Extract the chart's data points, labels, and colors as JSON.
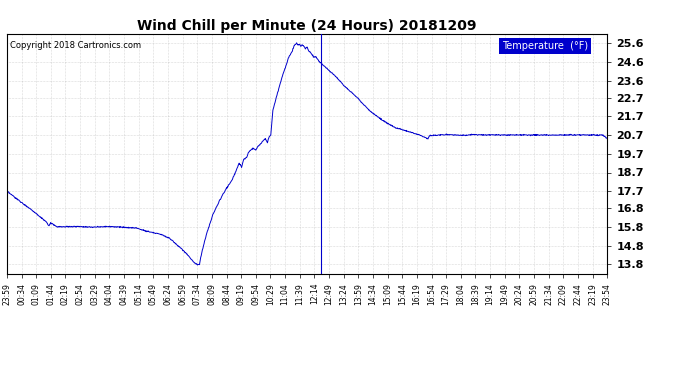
{
  "title": "Wind Chill per Minute (24 Hours) 20181209",
  "copyright": "Copyright 2018 Cartronics.com",
  "legend_label": "Temperature  (°F)",
  "line_color": "#0000cc",
  "background_color": "#ffffff",
  "plot_bg_color": "#ffffff",
  "grid_color": "#888888",
  "ylim": [
    13.3,
    26.1
  ],
  "yticks": [
    13.8,
    14.8,
    15.8,
    16.8,
    17.7,
    18.7,
    19.7,
    20.7,
    21.7,
    22.7,
    23.6,
    24.6,
    25.6
  ],
  "xtick_labels": [
    "23:59",
    "00:34",
    "01:09",
    "01:44",
    "02:19",
    "02:54",
    "03:29",
    "04:04",
    "04:39",
    "05:14",
    "05:49",
    "06:24",
    "06:59",
    "07:34",
    "08:09",
    "08:44",
    "09:19",
    "09:54",
    "10:29",
    "11:04",
    "11:39",
    "12:14",
    "12:49",
    "13:24",
    "13:59",
    "14:34",
    "15:09",
    "15:44",
    "16:19",
    "16:54",
    "17:29",
    "18:04",
    "18:39",
    "19:14",
    "19:49",
    "20:24",
    "20:59",
    "21:34",
    "22:09",
    "22:44",
    "23:19",
    "23:54"
  ],
  "legend_bg": "#0000cc",
  "legend_text_color": "#ffffff",
  "breakpoints": [
    [
      0,
      17.7
    ],
    [
      35,
      17.1
    ],
    [
      60,
      16.7
    ],
    [
      95,
      16.05
    ],
    [
      100,
      15.85
    ],
    [
      105,
      16.0
    ],
    [
      120,
      15.8
    ],
    [
      180,
      15.82
    ],
    [
      200,
      15.78
    ],
    [
      240,
      15.82
    ],
    [
      270,
      15.8
    ],
    [
      290,
      15.75
    ],
    [
      310,
      15.75
    ],
    [
      330,
      15.6
    ],
    [
      350,
      15.5
    ],
    [
      370,
      15.4
    ],
    [
      390,
      15.2
    ],
    [
      410,
      14.8
    ],
    [
      430,
      14.4
    ],
    [
      445,
      14.0
    ],
    [
      453,
      13.82
    ],
    [
      457,
      13.8
    ],
    [
      462,
      13.8
    ],
    [
      468,
      14.5
    ],
    [
      480,
      15.5
    ],
    [
      495,
      16.5
    ],
    [
      510,
      17.2
    ],
    [
      525,
      17.8
    ],
    [
      540,
      18.3
    ],
    [
      550,
      18.8
    ],
    [
      557,
      19.2
    ],
    [
      563,
      19.0
    ],
    [
      568,
      19.4
    ],
    [
      575,
      19.5
    ],
    [
      580,
      19.8
    ],
    [
      590,
      20.0
    ],
    [
      597,
      19.9
    ],
    [
      602,
      20.1
    ],
    [
      607,
      20.2
    ],
    [
      615,
      20.4
    ],
    [
      620,
      20.5
    ],
    [
      625,
      20.3
    ],
    [
      629,
      20.6
    ],
    [
      633,
      20.7
    ],
    [
      638,
      22.0
    ],
    [
      645,
      22.6
    ],
    [
      650,
      23.0
    ],
    [
      660,
      23.8
    ],
    [
      668,
      24.3
    ],
    [
      675,
      24.8
    ],
    [
      683,
      25.1
    ],
    [
      688,
      25.4
    ],
    [
      692,
      25.55
    ],
    [
      695,
      25.6
    ],
    [
      698,
      25.5
    ],
    [
      702,
      25.55
    ],
    [
      705,
      25.4
    ],
    [
      708,
      25.5
    ],
    [
      712,
      25.45
    ],
    [
      716,
      25.3
    ],
    [
      720,
      25.4
    ],
    [
      724,
      25.2
    ],
    [
      728,
      25.1
    ],
    [
      732,
      25.0
    ],
    [
      736,
      24.85
    ],
    [
      740,
      24.9
    ],
    [
      745,
      24.75
    ],
    [
      750,
      24.6
    ],
    [
      760,
      24.4
    ],
    [
      770,
      24.2
    ],
    [
      790,
      23.8
    ],
    [
      810,
      23.3
    ],
    [
      840,
      22.7
    ],
    [
      870,
      22.0
    ],
    [
      900,
      21.5
    ],
    [
      930,
      21.1
    ],
    [
      960,
      20.9
    ],
    [
      990,
      20.7
    ],
    [
      1010,
      20.5
    ],
    [
      1015,
      20.7
    ],
    [
      1020,
      20.65
    ],
    [
      1025,
      20.7
    ],
    [
      1030,
      20.68
    ],
    [
      1040,
      20.7
    ],
    [
      1060,
      20.72
    ],
    [
      1080,
      20.7
    ],
    [
      1100,
      20.68
    ],
    [
      1120,
      20.72
    ],
    [
      1150,
      20.7
    ],
    [
      1200,
      20.7
    ],
    [
      1250,
      20.7
    ],
    [
      1300,
      20.7
    ],
    [
      1350,
      20.7
    ],
    [
      1400,
      20.7
    ],
    [
      1430,
      20.7
    ],
    [
      1440,
      20.5
    ]
  ],
  "vline_minute": 753,
  "n_minutes": 1440
}
